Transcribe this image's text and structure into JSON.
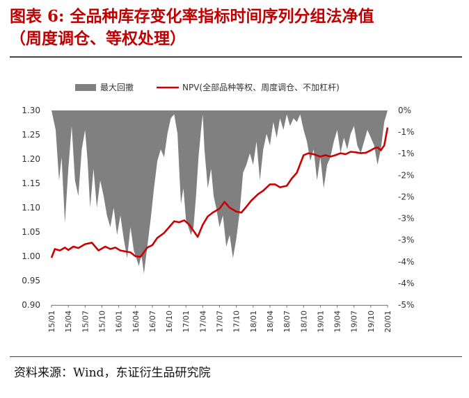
{
  "title_line1": "图表 6: 全品种库存变化率指标时间序列分组法净值",
  "title_line2": "（周度调仓、等权处理）",
  "source": "资料来源：Wind，东证衍生品研究院",
  "chart_data": {
    "type": "line",
    "legend": [
      "最大回撤",
      "NPV(全部品种等权、周度调仓、不加杠杆)"
    ],
    "colors": {
      "drawdown": "#808080",
      "npv": "#cc0000"
    },
    "y_left": {
      "range": [
        0.9,
        1.3
      ],
      "ticks": [
        "1.30",
        "1.25",
        "1.20",
        "1.15",
        "1.10",
        "1.05",
        "1.00",
        "0.95",
        "0.90"
      ]
    },
    "y_right": {
      "range": [
        -5,
        0
      ],
      "ticks": [
        "0%",
        "-1%",
        "-1%",
        "-2%",
        "-2%",
        "-3%",
        "-3%",
        "-4%",
        "-4%",
        "-5%"
      ]
    },
    "x_ticks": [
      "15/01",
      "15/04",
      "15/07",
      "15/10",
      "16/01",
      "16/04",
      "16/07",
      "16/10",
      "17/01",
      "17/04",
      "17/07",
      "17/10",
      "18/01",
      "18/04",
      "18/07",
      "18/10",
      "19/01",
      "19/04",
      "19/07",
      "19/10",
      "20/01"
    ],
    "npv": {
      "x": [
        0,
        0.2,
        0.5,
        0.8,
        1.0,
        1.3,
        1.6,
        2.0,
        2.4,
        2.8,
        3.2,
        3.5,
        3.8,
        4.1,
        4.4,
        4.7,
        5.0,
        5.3,
        5.7,
        6.0,
        6.3,
        6.7,
        7.0,
        7.3,
        7.6,
        7.9,
        8.2,
        8.5,
        8.7,
        9.0,
        9.3,
        9.6,
        10.0,
        10.3,
        10.6,
        11.0,
        11.3,
        11.6,
        11.9,
        12.3,
        12.6,
        13.0,
        13.3,
        13.6,
        14.0,
        14.3,
        14.6,
        15.0,
        15.3,
        15.6,
        16.0,
        16.3,
        16.6,
        16.9,
        17.2,
        17.5,
        17.8,
        18.1,
        18.4,
        18.7,
        19.0,
        19.2,
        19.4,
        19.6,
        19.8,
        20.0
      ],
      "y": [
        0.997,
        1.015,
        1.012,
        1.018,
        1.013,
        1.02,
        1.017,
        1.025,
        1.028,
        1.012,
        1.02,
        1.015,
        1.018,
        1.012,
        1.01,
        1.008,
        1.0,
        0.999,
        1.018,
        1.023,
        1.038,
        1.048,
        1.06,
        1.072,
        1.07,
        1.074,
        1.065,
        1.05,
        1.04,
        1.065,
        1.082,
        1.09,
        1.098,
        1.112,
        1.1,
        1.092,
        1.09,
        1.102,
        1.115,
        1.128,
        1.135,
        1.148,
        1.148,
        1.142,
        1.145,
        1.16,
        1.172,
        1.208,
        1.212,
        1.21,
        1.205,
        1.208,
        1.205,
        1.208,
        1.212,
        1.21,
        1.215,
        1.214,
        1.212,
        1.213,
        1.218,
        1.222,
        1.224,
        1.218,
        1.228,
        1.265
      ]
    },
    "drawdown": {
      "x": [
        0,
        0.25,
        0.45,
        0.6,
        0.8,
        1.0,
        1.2,
        1.4,
        1.6,
        1.8,
        2.0,
        2.15,
        2.3,
        2.5,
        2.7,
        2.9,
        3.1,
        3.3,
        3.5,
        3.7,
        3.9,
        4.1,
        4.3,
        4.5,
        4.7,
        4.9,
        5.05,
        5.2,
        5.35,
        5.5,
        5.7,
        5.9,
        6.1,
        6.3,
        6.5,
        6.7,
        6.9,
        7.1,
        7.3,
        7.5,
        7.6,
        7.7,
        7.85,
        8.0,
        8.15,
        8.3,
        8.45,
        8.6,
        8.75,
        8.9,
        9.0,
        9.1,
        9.3,
        9.5,
        9.65,
        9.8,
        10.0,
        10.2,
        10.4,
        10.6,
        10.8,
        11.0,
        11.2,
        11.4,
        11.6,
        11.8,
        12.0,
        12.2,
        12.4,
        12.6,
        12.8,
        13.0,
        13.2,
        13.4,
        13.6,
        13.8,
        14.0,
        14.2,
        14.4,
        14.6,
        14.8,
        15.0,
        15.2,
        15.4,
        15.6,
        15.8,
        16.0,
        16.2,
        16.4,
        16.6,
        16.8,
        17.0,
        17.2,
        17.4,
        17.6,
        17.8,
        18.0,
        18.2,
        18.4,
        18.6,
        18.8,
        19.0,
        19.2,
        19.4,
        19.6,
        19.8,
        20.0
      ],
      "y": [
        0,
        -0.5,
        -1.8,
        -1.2,
        -2.9,
        -1.5,
        -0.4,
        -1.8,
        -2.2,
        -1.0,
        -0.5,
        -1.3,
        -2.5,
        -1.5,
        -2.5,
        -1.8,
        -2.2,
        -2.7,
        -3.0,
        -2.5,
        -3.2,
        -2.7,
        -3.3,
        -3.8,
        -3.0,
        -3.6,
        -3.8,
        -4.0,
        -3.7,
        -4.2,
        -3.5,
        -2.8,
        -2.0,
        -1.3,
        -1.0,
        -1.2,
        -0.6,
        -0.2,
        -0.1,
        -0.6,
        -1.5,
        -2.4,
        -2.0,
        -2.8,
        -3.0,
        -3.2,
        -3.0,
        -2.2,
        -1.2,
        -0.5,
        -0.1,
        -1.0,
        -2.0,
        -1.5,
        -2.2,
        -2.5,
        -3.0,
        -2.7,
        -3.5,
        -3.2,
        -3.8,
        -3.3,
        -2.6,
        -1.6,
        -1.4,
        -1.1,
        -1.4,
        -0.8,
        -1.8,
        -1.0,
        -0.6,
        -0.9,
        -0.3,
        -0.7,
        -0.2,
        -0.5,
        -0.1,
        -0.4,
        -0.2,
        -0.3,
        -0.1,
        -0.5,
        -0.8,
        -1.3,
        -1.0,
        -1.8,
        -1.2,
        -2.0,
        -1.4,
        -1.2,
        -0.8,
        -0.5,
        -1.1,
        -0.7,
        -1.0,
        -0.6,
        -0.4,
        -0.9,
        -1.1,
        -0.8,
        -0.5,
        -0.7,
        -0.9,
        -1.4,
        -1.0,
        -0.3,
        0
      ]
    }
  }
}
